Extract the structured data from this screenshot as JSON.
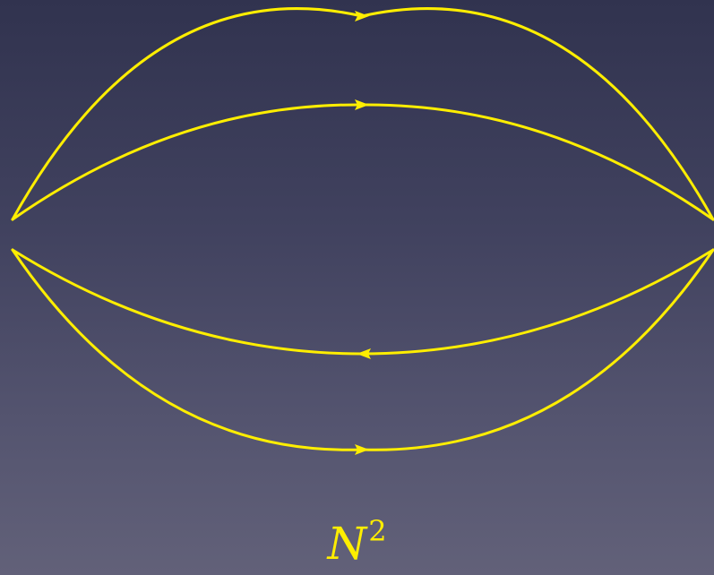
{
  "colors": {
    "stroke": "#ffee00",
    "label": "#ffee00"
  },
  "edges": [
    {
      "name": "outer-upper-arc",
      "direction": "right"
    },
    {
      "name": "inner-upper-arc",
      "direction": "right"
    },
    {
      "name": "inner-lower-arc",
      "direction": "left"
    },
    {
      "name": "outer-lower-arc",
      "direction": "right"
    }
  ],
  "label": {
    "base": "N",
    "exponent": "2"
  }
}
